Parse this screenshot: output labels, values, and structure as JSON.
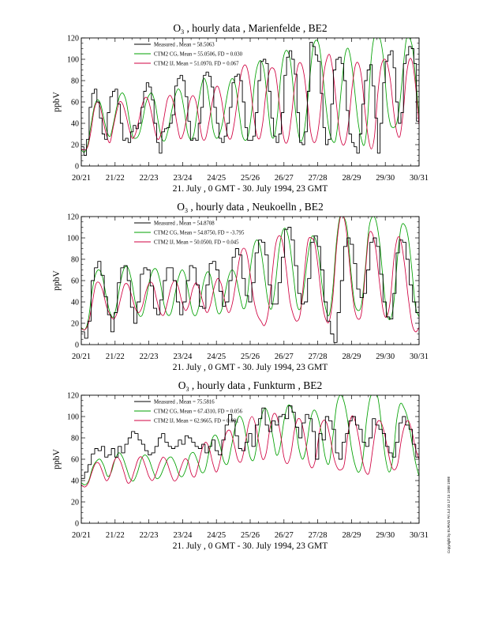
{
  "page": {
    "copyright": "Copyright by EURAD Fri Jul 10 17:15 1998 1998"
  },
  "chart_data": [
    {
      "type": "line",
      "title": "O3 , hourly data , Marienfelde , BE2",
      "title_parts": {
        "pre": "O",
        "sub": "3",
        "post": " , hourly data , Marienfelde , BE2"
      },
      "xlabel": "21. July , 0 GMT - 30. July 1994, 23 GMT",
      "ylabel": "ppbV",
      "ylim": [
        0,
        120
      ],
      "yticks": [
        0,
        20,
        40,
        60,
        80,
        100,
        120
      ],
      "xlim": [
        0,
        240
      ],
      "xtick_labels": [
        "20/21",
        "21/22",
        "22/23",
        "23/24",
        "24/25",
        "25/26",
        "26/27",
        "27/28",
        "28/29",
        "29/30",
        "30/31"
      ],
      "legend_placement": "top-left",
      "series": [
        {
          "name": "Measured    , Mean = 58.5063",
          "color": "#000000",
          "step": true,
          "values": [
            18,
            10,
            25,
            55,
            68,
            72,
            60,
            45,
            30,
            25,
            50,
            65,
            70,
            72,
            58,
            40,
            24,
            26,
            22,
            32,
            38,
            35,
            40,
            55,
            70,
            78,
            74,
            62,
            40,
            22,
            12,
            32,
            35,
            36,
            40,
            48,
            75,
            82,
            85,
            80,
            65,
            42,
            24,
            26,
            24,
            40,
            55,
            85,
            88,
            84,
            74,
            55,
            40,
            26,
            22,
            28,
            40,
            55,
            78,
            84,
            86,
            80,
            60,
            36,
            24,
            24,
            28,
            50,
            80,
            98,
            100,
            96,
            70,
            45,
            28,
            22,
            30,
            50,
            85,
            102,
            108,
            100,
            86,
            50,
            22,
            20,
            32,
            70,
            116,
            112,
            104,
            98,
            68,
            36,
            20,
            25,
            58,
            90,
            100,
            102,
            96,
            80,
            52,
            30,
            22,
            18,
            12,
            30,
            58,
            80,
            90,
            95,
            75,
            45,
            12,
            40,
            78,
            98,
            104,
            108,
            92,
            60,
            40,
            50,
            96,
            104,
            112,
            110,
            96,
            42
          ]
        },
        {
          "name": "CTM2 CG, Mean = 55.0506, FD = 0.030",
          "color": "#00a000",
          "step": false,
          "values": [
            15,
            13,
            20,
            38,
            55,
            62,
            58,
            45,
            32,
            28,
            40,
            55,
            66,
            68,
            60,
            42,
            28,
            26,
            30,
            42,
            58,
            66,
            68,
            58,
            40,
            26,
            24,
            34,
            50,
            64,
            72,
            68,
            52,
            32,
            25,
            30,
            50,
            70,
            82,
            76,
            56,
            34,
            26,
            30,
            42,
            60,
            76,
            82,
            74,
            52,
            30,
            24,
            30,
            52,
            82,
            96,
            98,
            86,
            56,
            30,
            28,
            48,
            84,
            104,
            108,
            98,
            70,
            40,
            24,
            28,
            50,
            82,
            110,
            118,
            112,
            88,
            58,
            34,
            24,
            24,
            46,
            78,
            104,
            110,
            96,
            70,
            42,
            26,
            20,
            44,
            96,
            124,
            124,
            118,
            98,
            60,
            40,
            36,
            40,
            58,
            90,
            118,
            124,
            110,
            80,
            46
          ]
        },
        {
          "name": "CTM2 IJ, Mean = 51.0970, FD = 0.067",
          "color": "#d00040",
          "step": false,
          "values": [
            16,
            15,
            18,
            32,
            52,
            60,
            55,
            40,
            28,
            22,
            36,
            50,
            60,
            58,
            48,
            35,
            26,
            30,
            42,
            56,
            64,
            62,
            50,
            34,
            25,
            30,
            46,
            62,
            66,
            58,
            40,
            26,
            30,
            44,
            60,
            66,
            60,
            42,
            26,
            26,
            40,
            58,
            72,
            74,
            62,
            42,
            28,
            26,
            40,
            62,
            84,
            94,
            92,
            76,
            50,
            30,
            26,
            42,
            70,
            88,
            92,
            86,
            62,
            36,
            22,
            26,
            48,
            76,
            94,
            96,
            84,
            58,
            32,
            22,
            28,
            50,
            84,
            100,
            104,
            88,
            60,
            32,
            20,
            24,
            44,
            74,
            94,
            96,
            82,
            52,
            28,
            16,
            28,
            66,
            92,
            100,
            96,
            80,
            52,
            32,
            28,
            50,
            84,
            100,
            96,
            72,
            38
          ]
        }
      ]
    },
    {
      "type": "line",
      "title": "O3 , hourly data , Neukoelln , BE2",
      "title_parts": {
        "pre": "O",
        "sub": "3",
        "post": " , hourly data , Neukoelln , BE2"
      },
      "xlabel": "21. July , 0 GMT - 30. July 1994, 23 GMT",
      "ylabel": "ppbV",
      "ylim": [
        0,
        120
      ],
      "yticks": [
        0,
        20,
        40,
        60,
        80,
        100,
        120
      ],
      "xlim": [
        0,
        240
      ],
      "xtick_labels": [
        "20/21",
        "21/22",
        "22/23",
        "23/24",
        "24/25",
        "25/26",
        "26/27",
        "27/28",
        "28/29",
        "29/30",
        "30/31"
      ],
      "legend_placement": "top-left",
      "series": [
        {
          "name": "Measured    , Mean = 54.8708",
          "color": "#000000",
          "step": true,
          "values": [
            12,
            6,
            22,
            60,
            72,
            78,
            65,
            45,
            28,
            12,
            30,
            58,
            72,
            74,
            60,
            35,
            20,
            40,
            66,
            72,
            70,
            55,
            34,
            28,
            42,
            60,
            72,
            72,
            60,
            40,
            28,
            40,
            60,
            74,
            72,
            56,
            36,
            34,
            56,
            76,
            78,
            70,
            50,
            36,
            40,
            60,
            82,
            90,
            84,
            62,
            46,
            40,
            58,
            86,
            98,
            96,
            84,
            56,
            38,
            38,
            58,
            82,
            108,
            110,
            98,
            74,
            48,
            38,
            40,
            62,
            96,
            102,
            92,
            70,
            40,
            22,
            10,
            2,
            30,
            60,
            92,
            100,
            94,
            76,
            52,
            44,
            48,
            70,
            96,
            100,
            92,
            66,
            40,
            26,
            24,
            48,
            86,
            98,
            96,
            80,
            56,
            40,
            30
          ]
        },
        {
          "name": "CTM2 CG, Mean = 54.8750, FD = -3.795",
          "color": "#00a000",
          "step": false,
          "values": [
            16,
            14,
            24,
            50,
            66,
            70,
            62,
            44,
            30,
            26,
            40,
            60,
            72,
            72,
            60,
            40,
            28,
            28,
            42,
            60,
            70,
            70,
            58,
            38,
            28,
            30,
            46,
            62,
            70,
            64,
            46,
            30,
            28,
            40,
            58,
            68,
            64,
            46,
            30,
            32,
            48,
            64,
            70,
            64,
            48,
            34,
            40,
            70,
            92,
            98,
            88,
            64,
            40,
            34,
            56,
            88,
            106,
            108,
            94,
            66,
            38,
            34,
            54,
            82,
            100,
            100,
            86,
            56,
            34,
            28,
            52,
            96,
            124,
            124,
            108,
            70,
            40,
            32,
            38,
            70,
            108,
            120,
            116,
            96,
            60,
            30,
            24,
            40,
            82,
            110,
            112,
            100,
            70,
            36,
            26
          ]
        },
        {
          "name": "CTM2 IJ, Mean = 50.0500, FD = 0.045",
          "color": "#d00040",
          "step": false,
          "values": [
            15,
            14,
            20,
            38,
            56,
            58,
            50,
            36,
            28,
            24,
            30,
            44,
            56,
            56,
            46,
            34,
            30,
            36,
            50,
            58,
            56,
            42,
            30,
            28,
            40,
            54,
            60,
            54,
            40,
            32,
            38,
            52,
            58,
            50,
            38,
            30,
            38,
            54,
            62,
            56,
            40,
            30,
            38,
            58,
            80,
            90,
            86,
            66,
            42,
            28,
            22,
            18,
            30,
            62,
            92,
            102,
            96,
            72,
            42,
            28,
            22,
            30,
            64,
            96,
            100,
            94,
            70,
            40,
            24,
            22,
            44,
            90,
            118,
            120,
            100,
            62,
            34,
            24,
            30,
            66,
            102,
            104,
            88,
            58,
            32,
            26,
            42,
            80,
            100,
            96,
            74,
            44,
            20,
            12,
            16
          ]
        }
      ]
    },
    {
      "type": "line",
      "title": "O3 , hourly data , Funkturm , BE2",
      "title_parts": {
        "pre": "O",
        "sub": "3",
        "post": " , hourly data , Funkturm , BE2"
      },
      "xlabel": "21. July , 0 GMT - 30. July 1994, 23 GMT",
      "ylabel": "ppbV",
      "ylim": [
        0,
        120
      ],
      "yticks": [
        0,
        20,
        40,
        60,
        80,
        100,
        120
      ],
      "xlim": [
        0,
        240
      ],
      "xtick_labels": [
        "20/21",
        "21/22",
        "22/23",
        "23/24",
        "24/25",
        "25/26",
        "26/27",
        "27/28",
        "28/29",
        "29/30",
        "30/31"
      ],
      "legend_placement": "top-left",
      "series": [
        {
          "name": "Measured    , Mean = 75.5816",
          "color": "#000000",
          "step": true,
          "values": [
            42,
            48,
            55,
            65,
            70,
            68,
            72,
            62,
            64,
            70,
            62,
            72,
            66,
            74,
            80,
            86,
            84,
            78,
            74,
            68,
            64,
            66,
            72,
            80,
            84,
            76,
            72,
            70,
            72,
            78,
            74,
            82,
            80,
            76,
            72,
            70,
            74,
            66,
            72,
            78,
            68,
            64,
            78,
            92,
            102,
            96,
            82,
            70,
            68,
            76,
            84,
            72,
            92,
            98,
            108,
            92,
            86,
            96,
            92,
            100,
            102,
            98,
            110,
            104,
            90,
            80,
            94,
            102,
            98,
            86,
            60,
            84,
            78,
            100,
            96,
            88,
            66,
            60,
            76,
            84,
            96,
            100,
            92,
            88,
            76,
            72,
            80,
            98,
            92,
            88,
            84,
            72,
            66,
            62,
            76,
            94,
            100,
            92,
            88,
            74,
            62
          ]
        },
        {
          "name": "CTM2 CG, Mean = 67.4310, FD = 0.056",
          "color": "#00a000",
          "step": false,
          "values": [
            38,
            36,
            40,
            52,
            58,
            60,
            54,
            44,
            48,
            60,
            66,
            62,
            52,
            42,
            40,
            48,
            60,
            64,
            60,
            50,
            42,
            44,
            52,
            60,
            62,
            56,
            46,
            44,
            52,
            64,
            66,
            58,
            48,
            50,
            66,
            80,
            82,
            72,
            58,
            56,
            72,
            90,
            100,
            96,
            80,
            62,
            60,
            78,
            100,
            108,
            100,
            82,
            64,
            72,
            96,
            110,
            108,
            94,
            70,
            60,
            72,
            96,
            106,
            100,
            84,
            62,
            56,
            80,
            110,
            120,
            114,
            96,
            70,
            54,
            48,
            60,
            96,
            118,
            124,
            118,
            92,
            62,
            48,
            60,
            96,
            112,
            108,
            98,
            78,
            58,
            44
          ]
        },
        {
          "name": "CTM2 IJ, Mean = 62.9665, FD = 0.091",
          "color": "#d00040",
          "step": false,
          "values": [
            36,
            34,
            38,
            48,
            56,
            56,
            48,
            40,
            44,
            56,
            62,
            58,
            48,
            38,
            40,
            50,
            60,
            62,
            54,
            44,
            40,
            46,
            56,
            62,
            58,
            48,
            40,
            42,
            52,
            60,
            58,
            46,
            44,
            56,
            70,
            76,
            70,
            56,
            48,
            58,
            76,
            86,
            86,
            74,
            60,
            58,
            72,
            92,
            100,
            92,
            74,
            60,
            66,
            88,
            102,
            100,
            84,
            62,
            56,
            66,
            88,
            98,
            94,
            78,
            58,
            52,
            62,
            86,
            96,
            94,
            80,
            62,
            52,
            50,
            56,
            84,
            100,
            96,
            80,
            60,
            48,
            48,
            70,
            92,
            96,
            88,
            72,
            56,
            50,
            56,
            78,
            92,
            96,
            86,
            70,
            60
          ]
        }
      ]
    }
  ]
}
